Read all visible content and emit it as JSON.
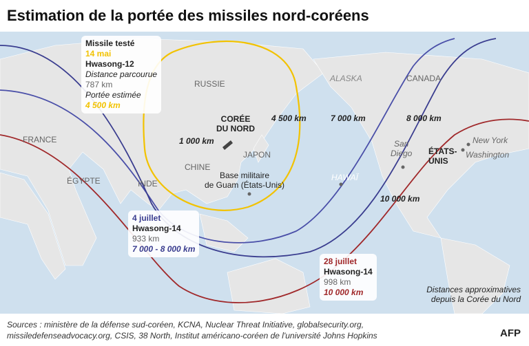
{
  "header": {
    "title": "Estimation de la portée des missiles nord-coréens"
  },
  "tests": [
    {
      "heading": "Missile testé",
      "date": "14 mai",
      "name": "Hwasong-12",
      "distance_label": "Distance parcourue",
      "distance": "787 km",
      "range_label": "Portée estimée",
      "range": "4 500 km"
    },
    {
      "date": "4 juillet",
      "name": "Hwasong-14",
      "distance": "933 km",
      "range": "7 000 - 8 000 km"
    },
    {
      "date": "28 juillet",
      "name": "Hwasong-14",
      "distance": "998 km",
      "range": "10 000 km"
    }
  ],
  "places": {
    "russia": "RUSSIE",
    "alaska": "ALASKA",
    "canada": "CANADA",
    "france": "FRANCE",
    "egypt": "ÉGYPTE",
    "india": "INDE",
    "china": "CHINE",
    "japan": "JAPON",
    "north_korea": [
      "CORÉE",
      "DU NORD"
    ],
    "guam": [
      "Base militaire",
      "de Guam (États-Unis)"
    ],
    "hawaii": "HAWAÏ",
    "san_diego": [
      "San",
      "Diego"
    ],
    "usa": [
      "ÉTATS-",
      "UNIS"
    ],
    "new_york": "New York",
    "washington": "Washington"
  },
  "ranges": {
    "r1000": "1 000 km",
    "r4500": "4 500 km",
    "r7000": "7 000 km",
    "r8000": "8 000 km",
    "r10000": "10 000 km"
  },
  "note": [
    "Distances approximatives",
    "depuis la Corée du Nord"
  ],
  "footer": {
    "sources": [
      "Sources : ministère de la défense sud-coréen, KCNA, Nuclear Threat Initiative, globalsecurity.org,",
      "missiledefenseadvocacy.org, CSIS, 38 North, Institut américano-coréen de l'université Johns Hopkins"
    ],
    "logo": "AFP"
  }
}
